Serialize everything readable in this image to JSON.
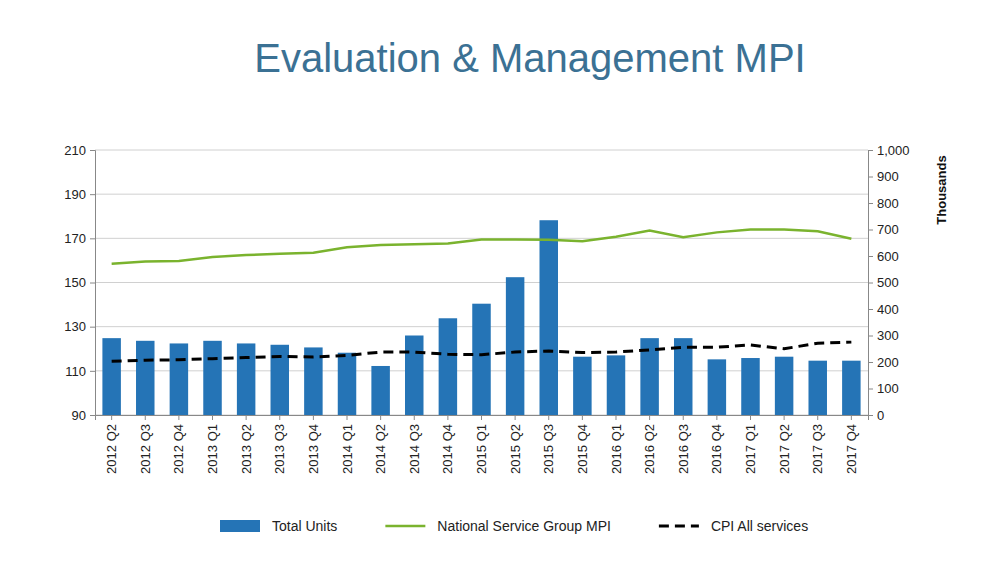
{
  "chart_data": {
    "type": "bar",
    "title": "Evaluation & Management MPI",
    "categories": [
      "2012 Q2",
      "2012 Q3",
      "2012 Q4",
      "2013 Q1",
      "2013 Q2",
      "2013 Q3",
      "2013 Q4",
      "2014 Q1",
      "2014 Q2",
      "2014 Q3",
      "2014 Q4",
      "2015 Q1",
      "2015 Q2",
      "2015 Q3",
      "2015 Q4",
      "2016 Q1",
      "2016 Q2",
      "2016 Q3",
      "2016 Q4",
      "2017 Q1",
      "2017 Q2",
      "2017 Q3",
      "2017 Q4"
    ],
    "series": [
      {
        "name": "Total Units",
        "type": "bar",
        "axis": "y2",
        "color": "#2574b6",
        "values": [
          290,
          280,
          270,
          280,
          270,
          265,
          255,
          235,
          185,
          300,
          365,
          420,
          520,
          735,
          220,
          225,
          290,
          290,
          210,
          215,
          220,
          205,
          205
        ]
      },
      {
        "name": "National Service Group MPI",
        "type": "line",
        "line_style": "solid",
        "color": "#7ab32e",
        "values": [
          158.5,
          159.5,
          159.7,
          161.5,
          162.4,
          163,
          163.5,
          166,
          167,
          167.3,
          167.7,
          169.5,
          169.5,
          169.4,
          168.7,
          170.7,
          173.5,
          170.5,
          172.7,
          174,
          174,
          173.2,
          169.8
        ]
      },
      {
        "name": "CPI All services",
        "type": "line",
        "line_style": "dashed",
        "color": "#000000",
        "values": [
          114.3,
          114.8,
          115,
          115.5,
          116,
          116.5,
          116.3,
          117,
          118.5,
          118.5,
          117.5,
          117.3,
          118.5,
          119,
          118.3,
          118.5,
          119.5,
          120.7,
          120.7,
          121.7,
          120,
          122.5,
          123
        ]
      }
    ],
    "ylim": [
      90,
      210
    ],
    "yticks": [
      90,
      110,
      130,
      150,
      170,
      190,
      210
    ],
    "y2lim": [
      0,
      1000
    ],
    "y2ticks": [
      0,
      100,
      200,
      300,
      400,
      500,
      600,
      700,
      800,
      900,
      {
        "value": 1000,
        "label": "1,000"
      }
    ],
    "y2_label": "Thousands",
    "grid": true,
    "legend": "bottom"
  }
}
